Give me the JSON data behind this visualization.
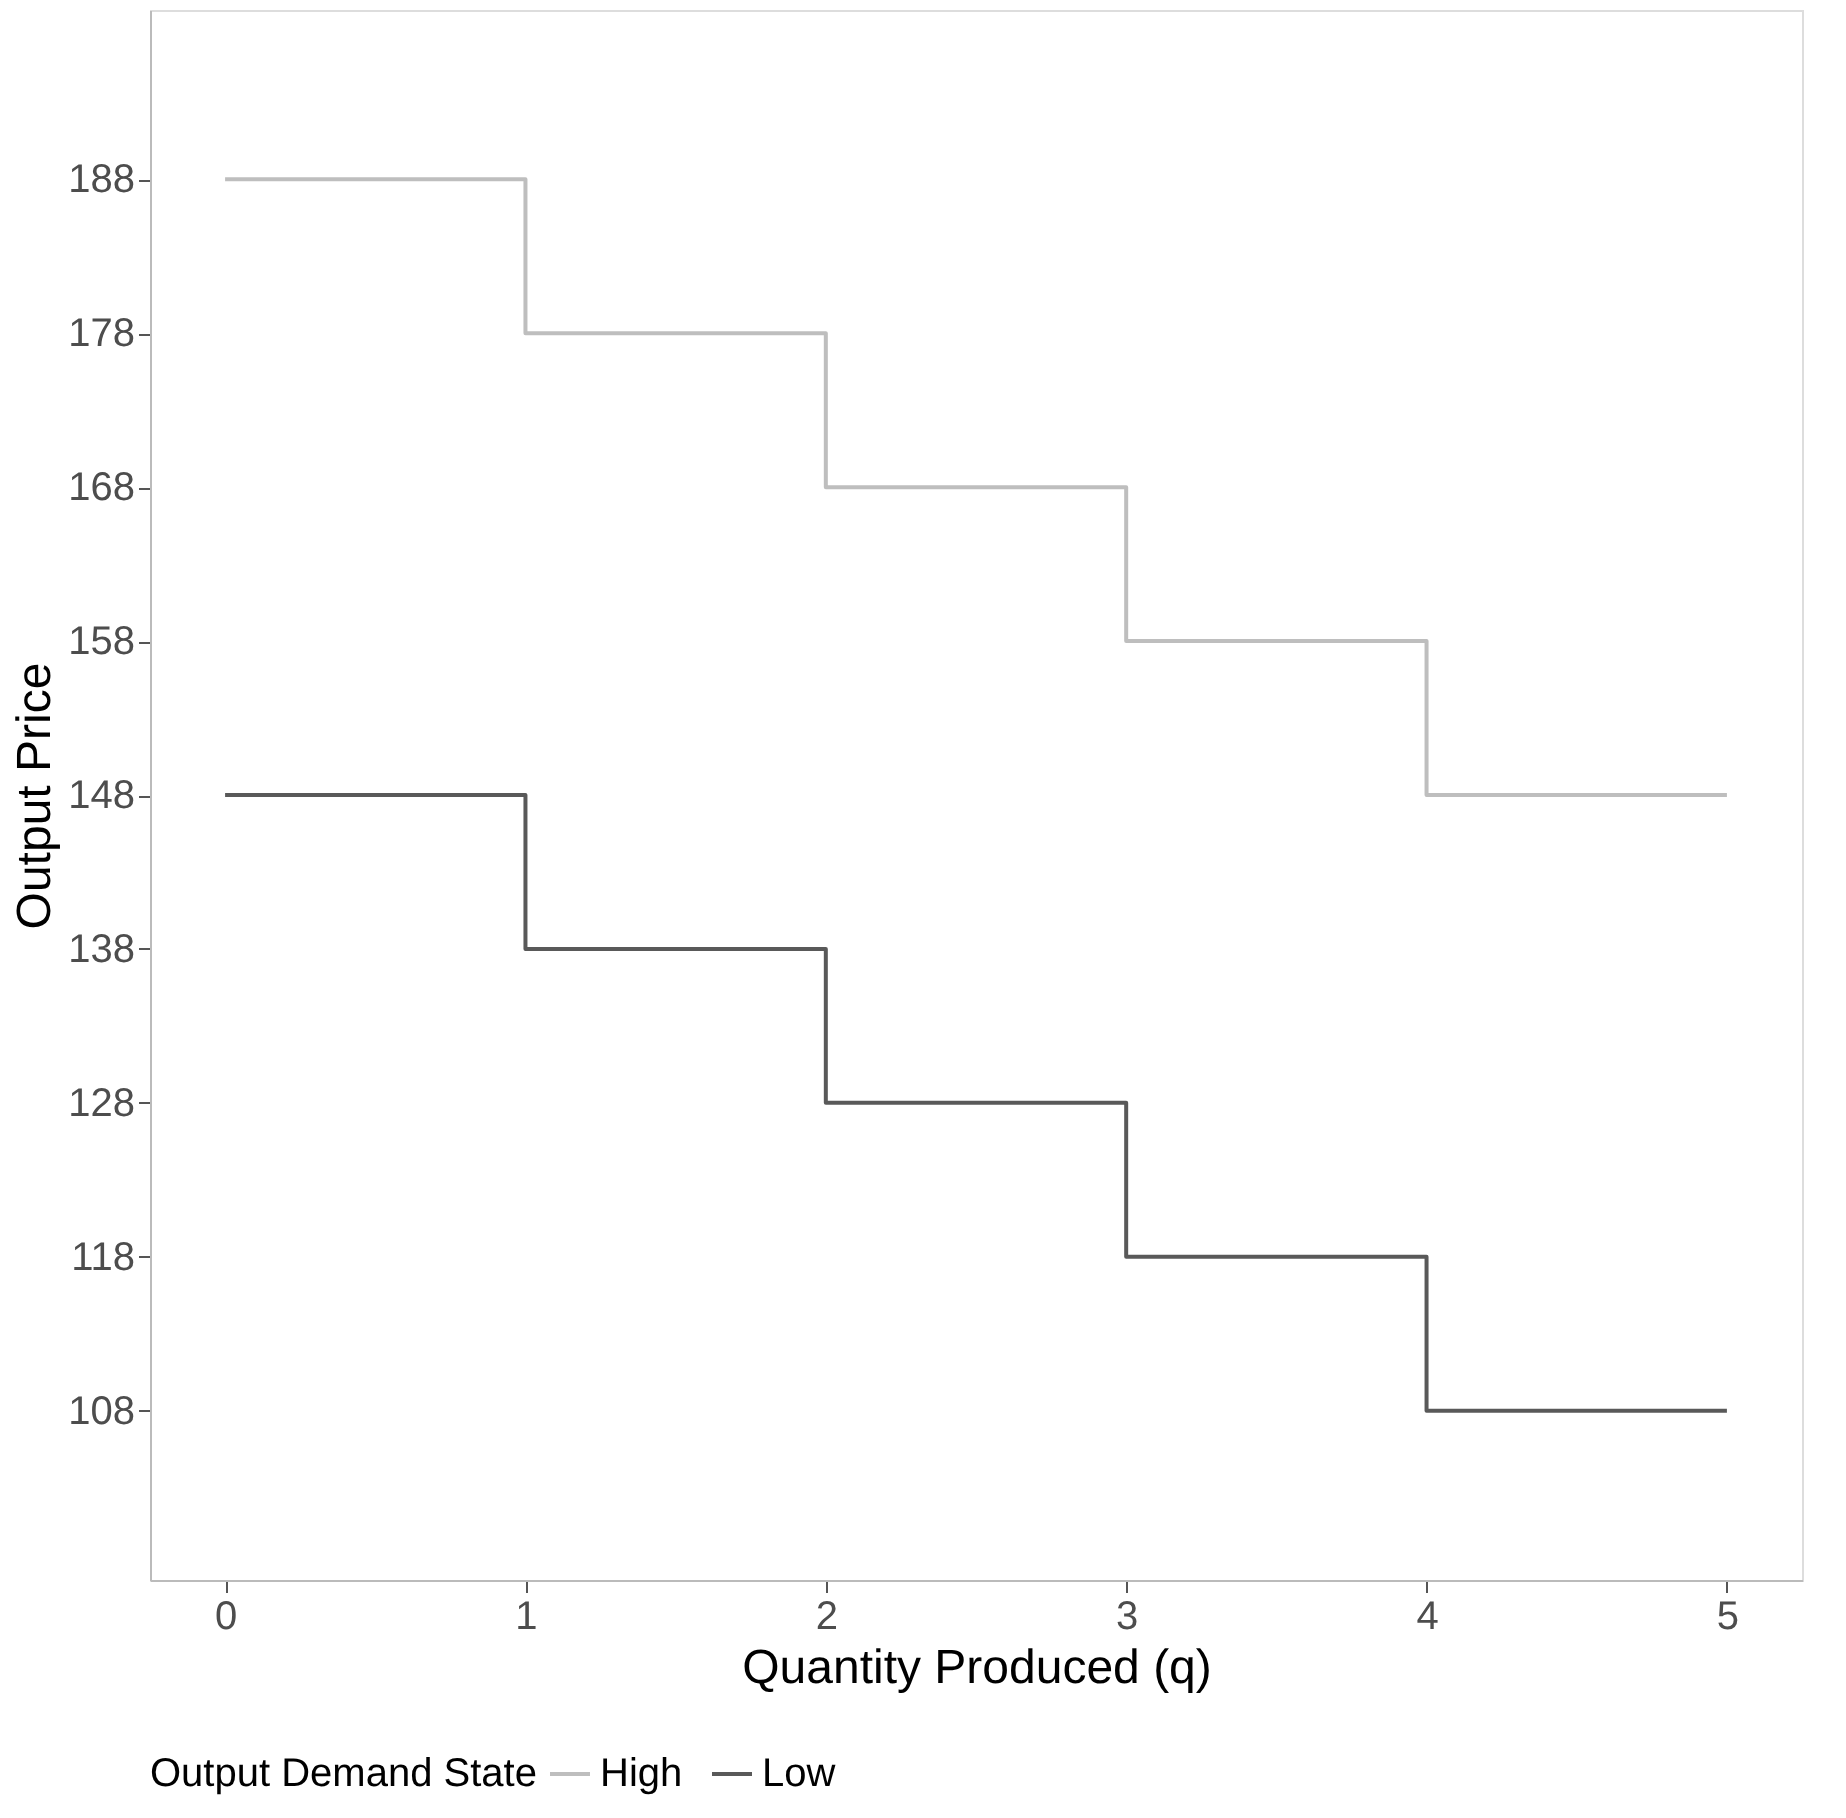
{
  "chart_data": {
    "type": "step",
    "xlabel": "Quantity Produced (q)",
    "ylabel": "Output Price",
    "legend_title": "Output Demand State",
    "x": [
      0,
      1,
      2,
      3,
      4,
      5
    ],
    "series": [
      {
        "name": "High",
        "color": "#bebebe",
        "values": [
          188,
          178,
          168,
          158,
          148,
          148
        ]
      },
      {
        "name": "Low",
        "color": "#595959",
        "values": [
          148,
          138,
          128,
          118,
          108,
          108
        ]
      }
    ],
    "xlim": [
      -0.25,
      5.25
    ],
    "ylim": [
      97,
      199
    ],
    "xticks": [
      0,
      1,
      2,
      3,
      4,
      5
    ],
    "yticks": [
      108,
      118,
      128,
      138,
      148,
      158,
      168,
      178,
      188
    ],
    "grid": false,
    "legend": "bottom"
  }
}
